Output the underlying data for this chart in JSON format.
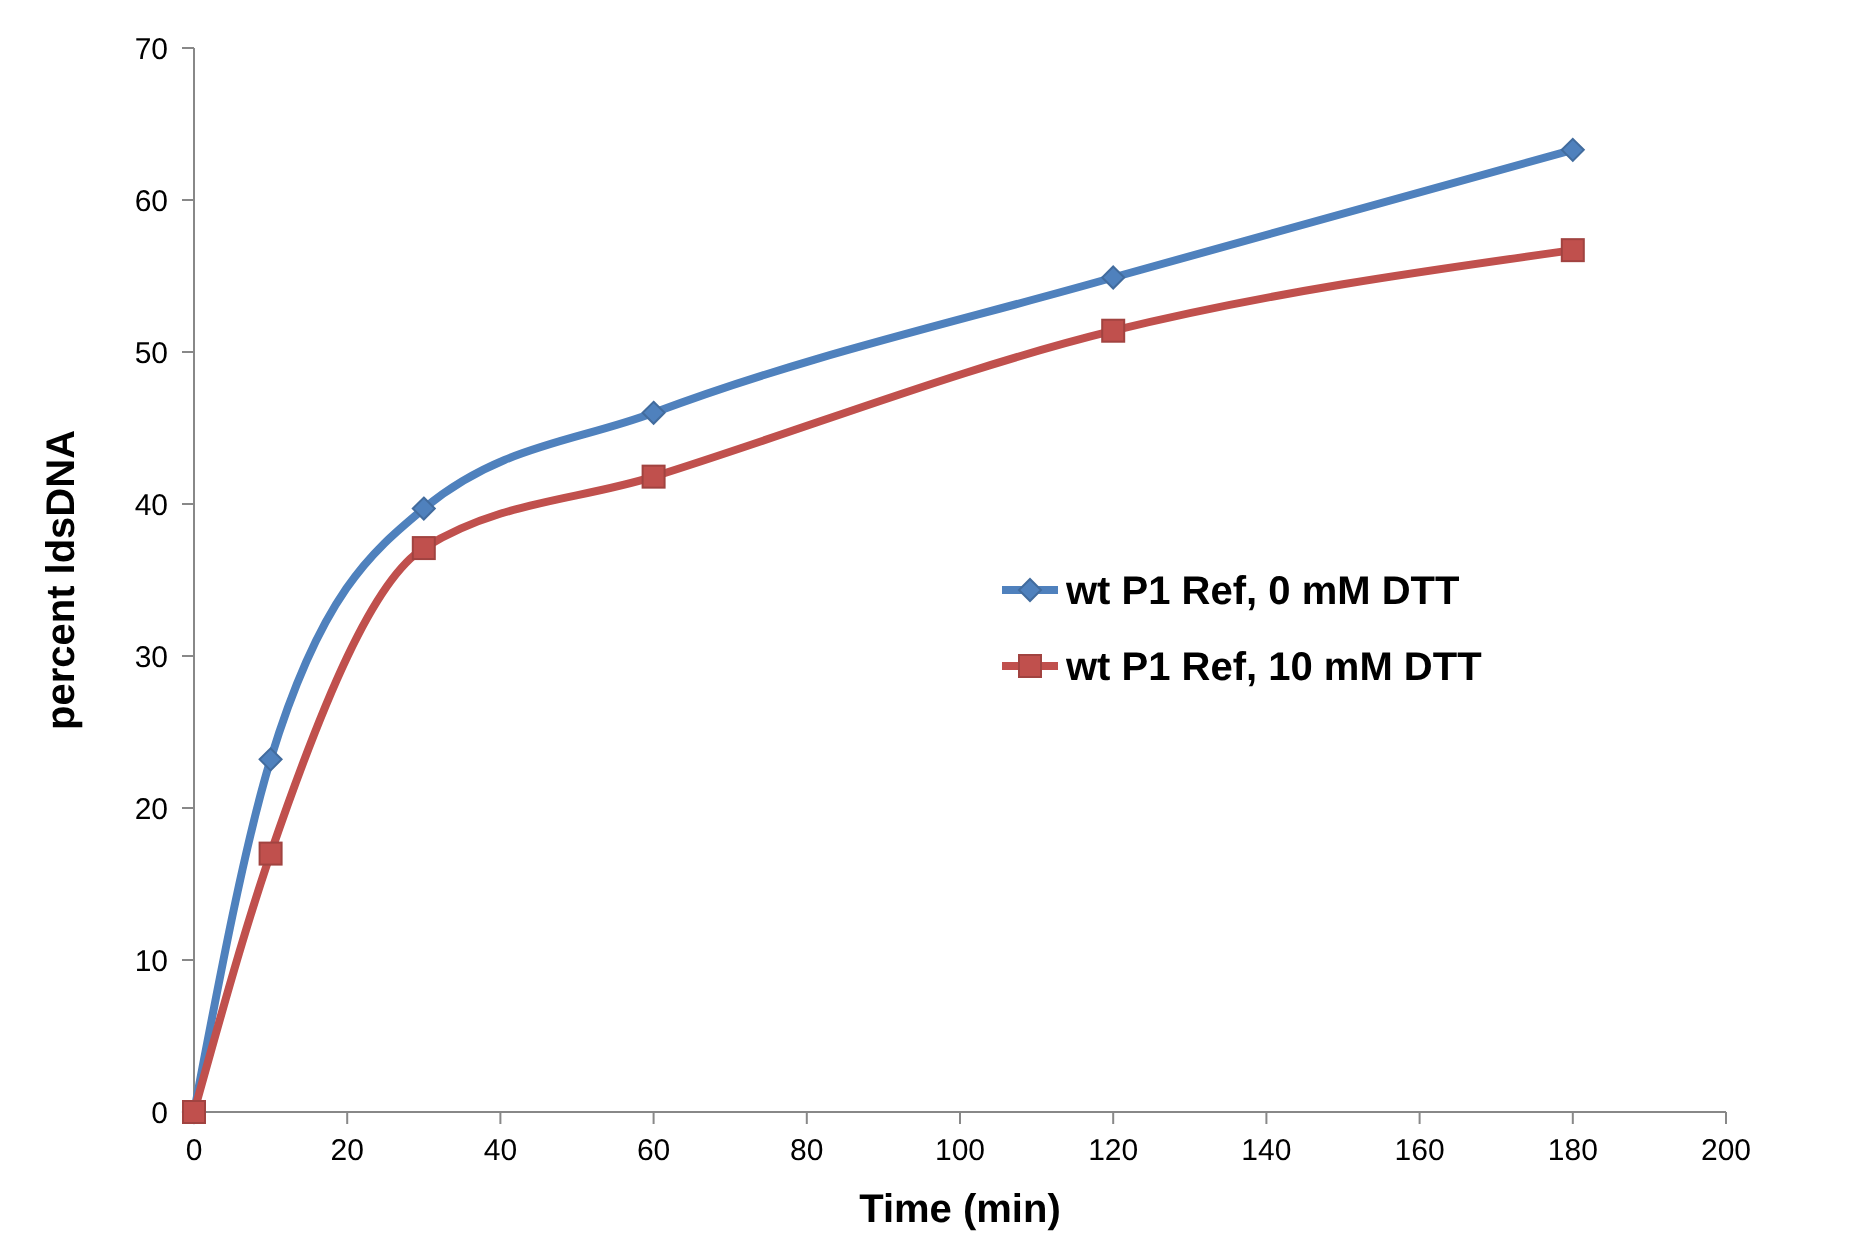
{
  "chart_data": {
    "type": "line",
    "xlabel": "Time (min)",
    "ylabel": "percent ldsDNA",
    "x": [
      0,
      10,
      30,
      60,
      120,
      180
    ],
    "series": [
      {
        "name": "wt P1 Ref, 0 mM DTT",
        "color": "#4f81bd",
        "marker": "diamond",
        "values": [
          0,
          23.2,
          39.7,
          46.0,
          54.9,
          63.3
        ]
      },
      {
        "name": "wt P1 Ref, 10 mM DTT",
        "color": "#c0504d",
        "marker": "square",
        "values": [
          0,
          17.0,
          37.1,
          41.8,
          51.4,
          56.7
        ]
      }
    ],
    "xlim": [
      0,
      200
    ],
    "xticks": [
      0,
      20,
      40,
      60,
      80,
      100,
      120,
      140,
      160,
      180,
      200
    ],
    "ylim": [
      0,
      70
    ],
    "yticks": [
      0,
      10,
      20,
      30,
      40,
      50,
      60,
      70
    ],
    "grid": false,
    "legend": "right"
  }
}
